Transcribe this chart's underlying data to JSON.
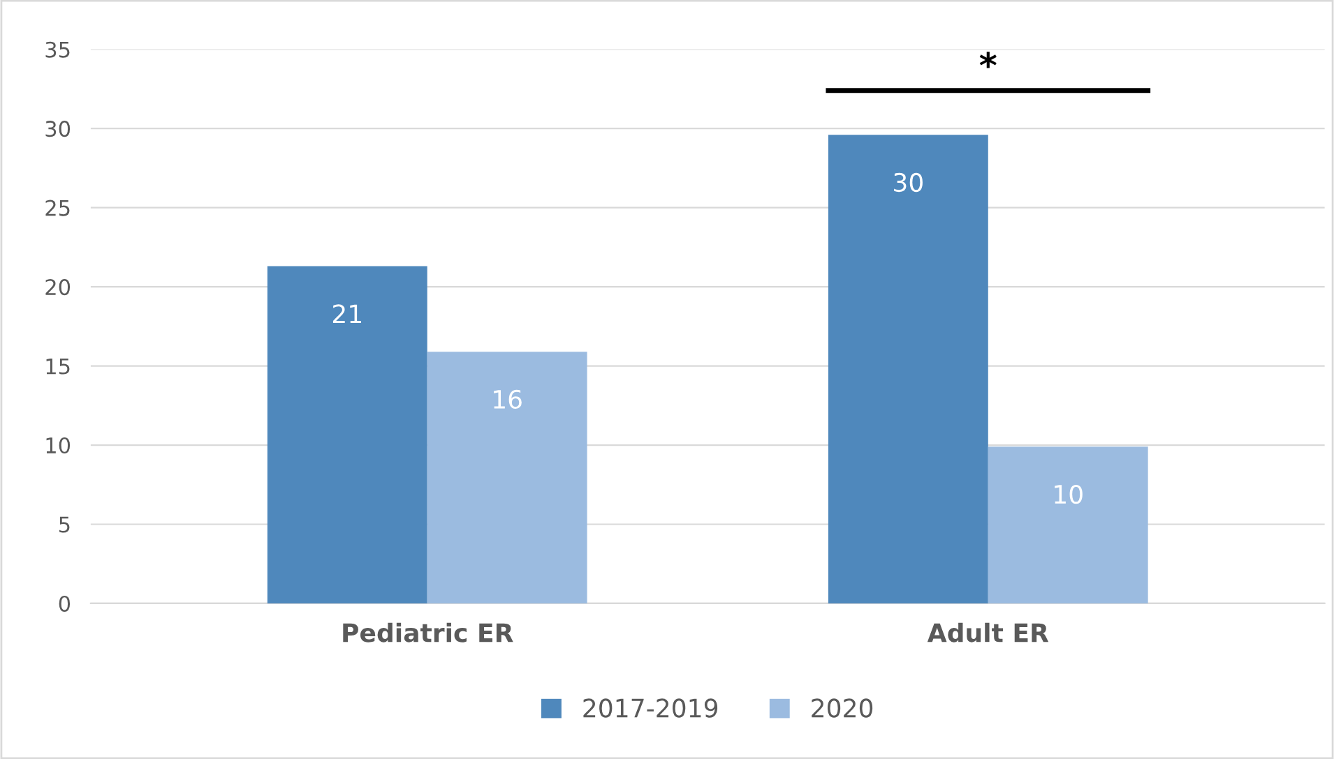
{
  "chart_data": {
    "type": "bar",
    "categories": [
      "Pediatric ER",
      "Adult ER"
    ],
    "series": [
      {
        "name": "2017-2019",
        "color": "#4f88bc",
        "values": [
          21.3,
          29.6
        ],
        "value_labels": [
          "21",
          "30"
        ]
      },
      {
        "name": "2020",
        "color": "#9bbbe0",
        "values": [
          15.9,
          9.9
        ],
        "value_labels": [
          "16",
          "10"
        ]
      }
    ],
    "ylim": [
      0,
      35
    ],
    "yticks": [
      0,
      5,
      10,
      15,
      20,
      25,
      30,
      35
    ],
    "grid": "y",
    "legend": "bottom",
    "annotations": [
      "*"
    ]
  }
}
